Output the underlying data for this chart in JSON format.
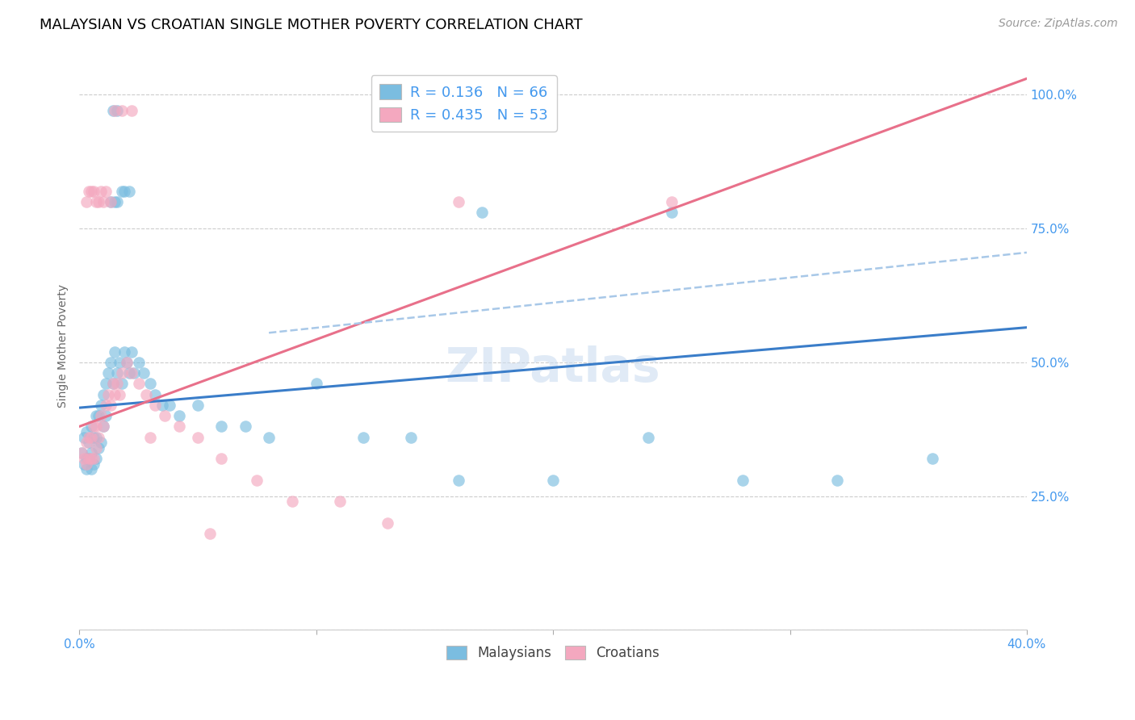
{
  "title": "MALAYSIAN VS CROATIAN SINGLE MOTHER POVERTY CORRELATION CHART",
  "source": "Source: ZipAtlas.com",
  "ylabel": "Single Mother Poverty",
  "xlim": [
    0.0,
    0.4
  ],
  "ylim": [
    0.0,
    1.06
  ],
  "xtick_positions": [
    0.0,
    0.1,
    0.2,
    0.3,
    0.4
  ],
  "xtick_labels": [
    "0.0%",
    "",
    "",
    "",
    "40.0%"
  ],
  "ytick_positions": [
    0.0,
    0.25,
    0.5,
    0.75,
    1.0
  ],
  "ytick_labels": [
    "",
    "25.0%",
    "50.0%",
    "75.0%",
    "100.0%"
  ],
  "legend_r_blue": "0.136",
  "legend_n_blue": "66",
  "legend_r_pink": "0.435",
  "legend_n_pink": "53",
  "blue_color": "#7bbde0",
  "pink_color": "#f4a8bf",
  "blue_line_color": "#3a7dc9",
  "pink_line_color": "#e8708a",
  "dashed_line_color": "#a8c8e8",
  "watermark": "ZIPatlas",
  "blue_line_x0": 0.0,
  "blue_line_x1": 0.4,
  "blue_line_y0": 0.415,
  "blue_line_y1": 0.565,
  "pink_line_x0": 0.0,
  "pink_line_x1": 0.4,
  "pink_line_y0": 0.38,
  "pink_line_y1": 1.03,
  "dashed_line_x0": 0.08,
  "dashed_line_x1": 0.4,
  "dashed_line_y0": 0.555,
  "dashed_line_y1": 0.705,
  "blue_points_x": [
    0.001,
    0.002,
    0.002,
    0.003,
    0.003,
    0.003,
    0.004,
    0.004,
    0.005,
    0.005,
    0.005,
    0.006,
    0.006,
    0.007,
    0.007,
    0.007,
    0.008,
    0.008,
    0.009,
    0.009,
    0.01,
    0.01,
    0.011,
    0.011,
    0.012,
    0.013,
    0.014,
    0.015,
    0.016,
    0.017,
    0.018,
    0.019,
    0.02,
    0.021,
    0.022,
    0.023,
    0.025,
    0.027,
    0.03,
    0.032,
    0.035,
    0.038,
    0.042,
    0.05,
    0.06,
    0.07,
    0.08,
    0.1,
    0.12,
    0.14,
    0.16,
    0.2,
    0.24,
    0.28,
    0.32,
    0.36,
    0.013,
    0.015,
    0.016,
    0.018,
    0.019,
    0.021,
    0.014,
    0.016,
    0.17,
    0.25
  ],
  "blue_points_y": [
    0.33,
    0.31,
    0.36,
    0.3,
    0.32,
    0.37,
    0.32,
    0.35,
    0.3,
    0.33,
    0.38,
    0.31,
    0.36,
    0.32,
    0.36,
    0.4,
    0.34,
    0.4,
    0.35,
    0.42,
    0.38,
    0.44,
    0.4,
    0.46,
    0.48,
    0.5,
    0.46,
    0.52,
    0.48,
    0.5,
    0.46,
    0.52,
    0.5,
    0.48,
    0.52,
    0.48,
    0.5,
    0.48,
    0.46,
    0.44,
    0.42,
    0.42,
    0.4,
    0.42,
    0.38,
    0.38,
    0.36,
    0.46,
    0.36,
    0.36,
    0.28,
    0.28,
    0.36,
    0.28,
    0.28,
    0.32,
    0.8,
    0.8,
    0.8,
    0.82,
    0.82,
    0.82,
    0.97,
    0.97,
    0.78,
    0.78
  ],
  "pink_points_x": [
    0.001,
    0.002,
    0.003,
    0.003,
    0.004,
    0.004,
    0.005,
    0.005,
    0.006,
    0.006,
    0.007,
    0.007,
    0.008,
    0.009,
    0.01,
    0.011,
    0.012,
    0.013,
    0.014,
    0.015,
    0.016,
    0.017,
    0.018,
    0.02,
    0.022,
    0.025,
    0.028,
    0.032,
    0.036,
    0.042,
    0.05,
    0.06,
    0.075,
    0.09,
    0.11,
    0.13,
    0.003,
    0.004,
    0.005,
    0.006,
    0.007,
    0.008,
    0.009,
    0.01,
    0.011,
    0.013,
    0.015,
    0.018,
    0.022,
    0.16,
    0.25,
    0.03,
    0.055
  ],
  "pink_points_y": [
    0.33,
    0.32,
    0.31,
    0.35,
    0.32,
    0.36,
    0.32,
    0.36,
    0.32,
    0.38,
    0.34,
    0.38,
    0.36,
    0.4,
    0.38,
    0.42,
    0.44,
    0.42,
    0.46,
    0.44,
    0.46,
    0.44,
    0.48,
    0.5,
    0.48,
    0.46,
    0.44,
    0.42,
    0.4,
    0.38,
    0.36,
    0.32,
    0.28,
    0.24,
    0.24,
    0.2,
    0.8,
    0.82,
    0.82,
    0.82,
    0.8,
    0.8,
    0.82,
    0.8,
    0.82,
    0.8,
    0.97,
    0.97,
    0.97,
    0.8,
    0.8,
    0.36,
    0.18
  ],
  "title_fontsize": 13,
  "axis_label_fontsize": 10,
  "tick_fontsize": 11,
  "legend_fontsize": 13
}
